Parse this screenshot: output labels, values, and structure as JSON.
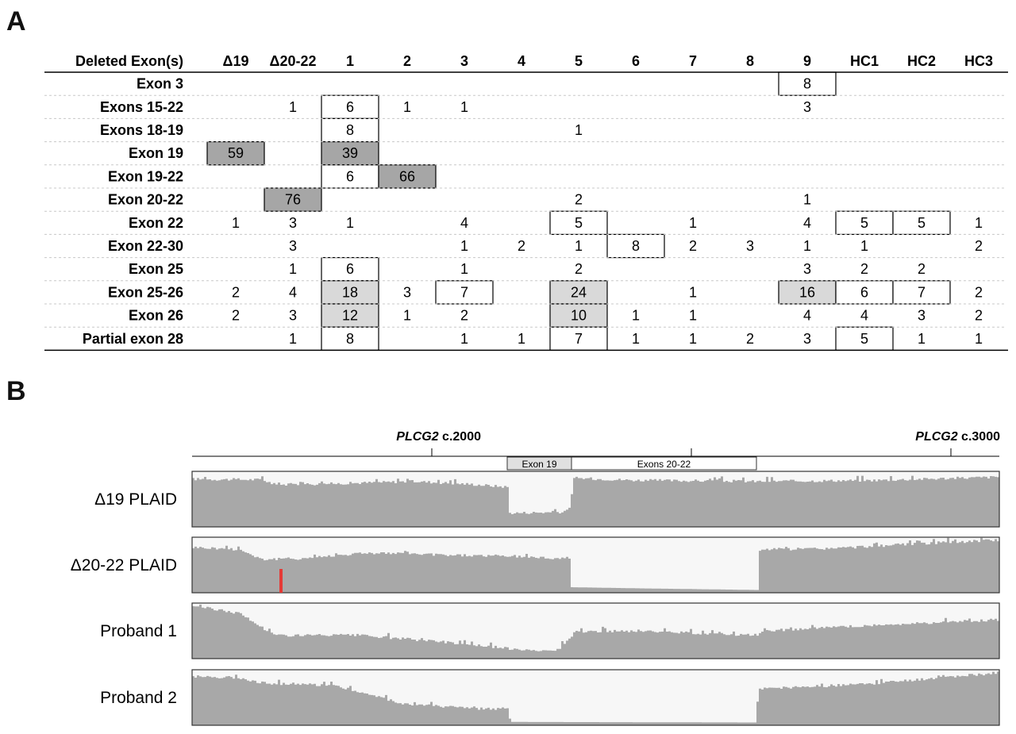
{
  "panels": {
    "a": "A",
    "b": "B"
  },
  "table": {
    "corner": "Deleted Exon(s)",
    "columns": [
      "Δ19",
      "Δ20-22",
      "1",
      "2",
      "3",
      "4",
      "5",
      "6",
      "7",
      "8",
      "9",
      "HC1",
      "HC2",
      "HC3"
    ],
    "rows": [
      {
        "label": "Exon 3",
        "cells": [
          "",
          "",
          "",
          "",
          "",
          "",
          "",
          "",
          "",
          "",
          "8",
          "",
          "",
          ""
        ]
      },
      {
        "label": "Exons 15-22",
        "cells": [
          "",
          "1",
          "6",
          "1",
          "1",
          "",
          "",
          "",
          "",
          "",
          "3",
          "",
          "",
          ""
        ]
      },
      {
        "label": "Exons 18-19",
        "cells": [
          "",
          "",
          "8",
          "",
          "",
          "",
          "1",
          "",
          "",
          "",
          "",
          "",
          "",
          ""
        ]
      },
      {
        "label": "Exon 19",
        "cells": [
          "59",
          "",
          "39",
          "",
          "",
          "",
          "",
          "",
          "",
          "",
          "",
          "",
          "",
          ""
        ]
      },
      {
        "label": "Exon 19-22",
        "cells": [
          "",
          "",
          "6",
          "66",
          "",
          "",
          "",
          "",
          "",
          "",
          "",
          "",
          "",
          ""
        ]
      },
      {
        "label": "Exon 20-22",
        "cells": [
          "",
          "76",
          "",
          "",
          "",
          "",
          "2",
          "",
          "",
          "",
          "1",
          "",
          "",
          ""
        ]
      },
      {
        "label": "Exon 22",
        "cells": [
          "1",
          "3",
          "1",
          "",
          "4",
          "",
          "5",
          "",
          "1",
          "",
          "4",
          "5",
          "5",
          "1"
        ]
      },
      {
        "label": "Exon 22-30",
        "cells": [
          "",
          "3",
          "",
          "",
          "1",
          "2",
          "1",
          "8",
          "2",
          "3",
          "1",
          "1",
          "",
          "2"
        ]
      },
      {
        "label": "Exon 25",
        "cells": [
          "",
          "1",
          "6",
          "",
          "1",
          "",
          "2",
          "",
          "",
          "",
          "3",
          "2",
          "2",
          ""
        ]
      },
      {
        "label": "Exon 25-26",
        "cells": [
          "2",
          "4",
          "18",
          "3",
          "7",
          "",
          "24",
          "",
          "1",
          "",
          "16",
          "6",
          "7",
          "2"
        ]
      },
      {
        "label": "Exon 26",
        "cells": [
          "2",
          "3",
          "12",
          "1",
          "2",
          "",
          "10",
          "1",
          "1",
          "",
          "4",
          "4",
          "3",
          "2"
        ]
      },
      {
        "label": "Partial exon 28",
        "cells": [
          "",
          "1",
          "8",
          "",
          "1",
          "1",
          "7",
          "1",
          "1",
          "2",
          "3",
          "5",
          "1",
          "1"
        ]
      }
    ],
    "highlights": [
      {
        "row": 0,
        "col": 10,
        "style": "box"
      },
      {
        "row": 1,
        "col": 2,
        "style": "box"
      },
      {
        "row": 2,
        "col": 2,
        "style": "box"
      },
      {
        "row": 3,
        "col": 0,
        "style": "dark"
      },
      {
        "row": 3,
        "col": 2,
        "style": "dark"
      },
      {
        "row": 4,
        "col": 2,
        "style": "box"
      },
      {
        "row": 4,
        "col": 3,
        "style": "dark"
      },
      {
        "row": 5,
        "col": 1,
        "style": "dark"
      },
      {
        "row": 6,
        "col": 6,
        "style": "box"
      },
      {
        "row": 6,
        "col": 11,
        "style": "box"
      },
      {
        "row": 6,
        "col": 12,
        "style": "box"
      },
      {
        "row": 7,
        "col": 7,
        "style": "box"
      },
      {
        "row": 8,
        "col": 2,
        "style": "box"
      },
      {
        "row": 9,
        "col": 2,
        "style": "light"
      },
      {
        "row": 9,
        "col": 4,
        "style": "box"
      },
      {
        "row": 9,
        "col": 6,
        "style": "light"
      },
      {
        "row": 9,
        "col": 10,
        "style": "light"
      },
      {
        "row": 9,
        "col": 11,
        "style": "box"
      },
      {
        "row": 9,
        "col": 12,
        "style": "box"
      },
      {
        "row": 10,
        "col": 2,
        "style": "light"
      },
      {
        "row": 10,
        "col": 6,
        "style": "light"
      },
      {
        "row": 11,
        "col": 2,
        "style": "box"
      },
      {
        "row": 11,
        "col": 6,
        "style": "box"
      },
      {
        "row": 11,
        "col": 11,
        "style": "box"
      }
    ],
    "colors": {
      "dark": "#a6a6a6",
      "light": "#d9d9d9",
      "line": "#000000",
      "dash": "#c8c8c8"
    }
  },
  "coverage": {
    "ruler": [
      {
        "gene": "PLCG2",
        "pos": " c.2000"
      },
      {
        "gene": "PLCG2",
        "pos": " c.3000"
      }
    ],
    "exons": [
      {
        "label": "Exon 19",
        "fill": "#e0e0e0"
      },
      {
        "label": "Exons 20-22",
        "fill": "#ffffff"
      }
    ],
    "tracks": [
      {
        "label": "Δ19 PLAID"
      },
      {
        "label": "Δ20-22 PLAID",
        "marker_color": "#e53935"
      },
      {
        "label": "Proband 1"
      },
      {
        "label": "Proband 2"
      }
    ],
    "colors": {
      "coverage": "#a8a8a8",
      "track_bg": "#f7f7f7",
      "border": "#333333"
    }
  }
}
